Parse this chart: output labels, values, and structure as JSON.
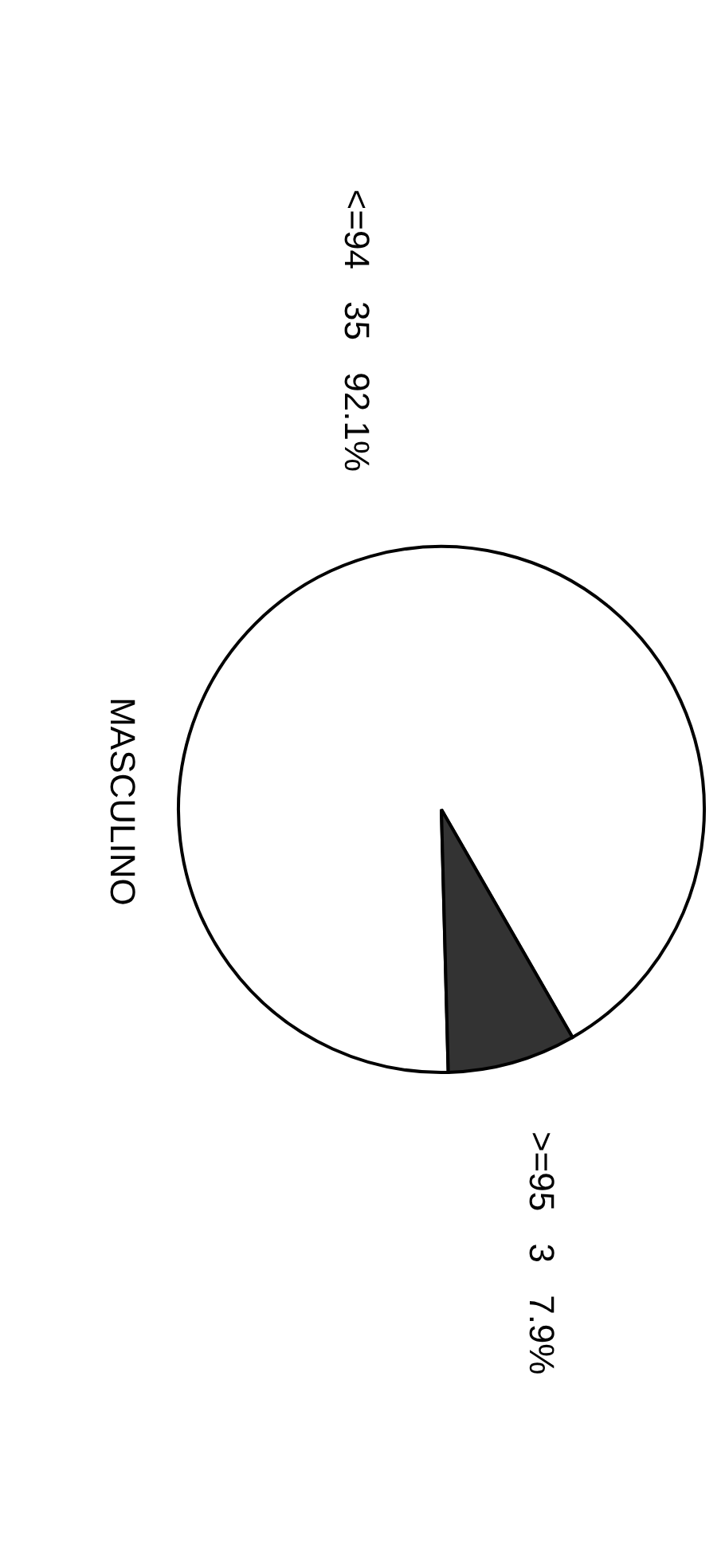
{
  "chart_data": {
    "type": "pie",
    "title": "MASCULINO",
    "categories": [
      "<=94",
      ">=95"
    ],
    "values": [
      35,
      3
    ],
    "colors": [
      "#ffffff",
      "#333333"
    ],
    "value_labels": [
      "35 92.1%",
      "3 7.9%"
    ]
  }
}
